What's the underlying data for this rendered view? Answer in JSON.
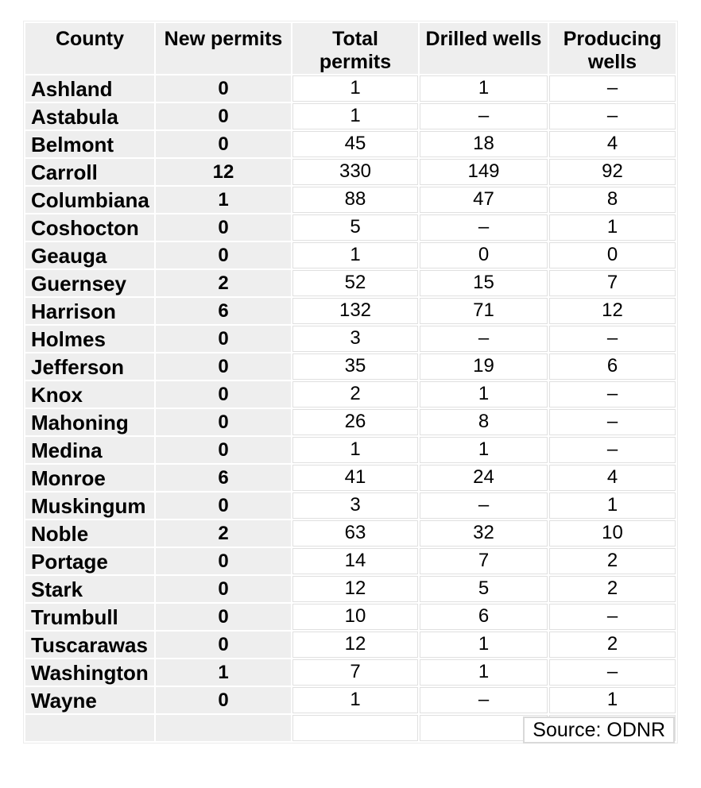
{
  "chart_data": {
    "type": "table",
    "title": "",
    "columns": [
      "County",
      "New permits",
      "Total permits",
      "Drilled wells",
      "Producing wells"
    ],
    "rows": [
      [
        "Ashland",
        "0",
        "1",
        "1",
        "–"
      ],
      [
        "Astabula",
        "0",
        "1",
        "–",
        "–"
      ],
      [
        "Belmont",
        "0",
        "45",
        "18",
        "4"
      ],
      [
        "Carroll",
        "12",
        "330",
        "149",
        "92"
      ],
      [
        "Columbiana",
        "1",
        "88",
        "47",
        "8"
      ],
      [
        "Coshocton",
        "0",
        "5",
        "–",
        "1"
      ],
      [
        "Geauga",
        "0",
        "1",
        "0",
        "0"
      ],
      [
        "Guernsey",
        "2",
        "52",
        "15",
        "7"
      ],
      [
        "Harrison",
        "6",
        "132",
        "71",
        "12"
      ],
      [
        "Holmes",
        "0",
        "3",
        "–",
        "–"
      ],
      [
        "Jefferson",
        "0",
        "35",
        "19",
        "6"
      ],
      [
        "Knox",
        "0",
        "2",
        "1",
        "–"
      ],
      [
        "Mahoning",
        "0",
        "26",
        "8",
        "–"
      ],
      [
        "Medina",
        "0",
        "1",
        "1",
        "–"
      ],
      [
        "Monroe",
        "6",
        "41",
        "24",
        "4"
      ],
      [
        "Muskingum",
        "0",
        "3",
        "–",
        "1"
      ],
      [
        "Noble",
        "2",
        "63",
        "32",
        "10"
      ],
      [
        "Portage",
        "0",
        "14",
        "7",
        "2"
      ],
      [
        "Stark",
        "0",
        "12",
        "5",
        "2"
      ],
      [
        "Trumbull",
        "0",
        "10",
        "6",
        "–"
      ],
      [
        "Tuscarawas",
        "0",
        "12",
        "1",
        "2"
      ],
      [
        "Washington",
        "1",
        "7",
        "1",
        "–"
      ],
      [
        "Wayne",
        "0",
        "1",
        "–",
        "1"
      ]
    ],
    "source": "Source: ODNR"
  },
  "display": {
    "column_labels": [
      "County",
      "New permits",
      "Total\npermits",
      "Drilled wells",
      "Producing\nwells"
    ]
  },
  "colors": {
    "cell_gray": "#eeeeee",
    "grid_line": "#e0e0e0",
    "table_outline": "#ececec",
    "source_box_border": "#d9d9d9",
    "text": "#000000"
  }
}
